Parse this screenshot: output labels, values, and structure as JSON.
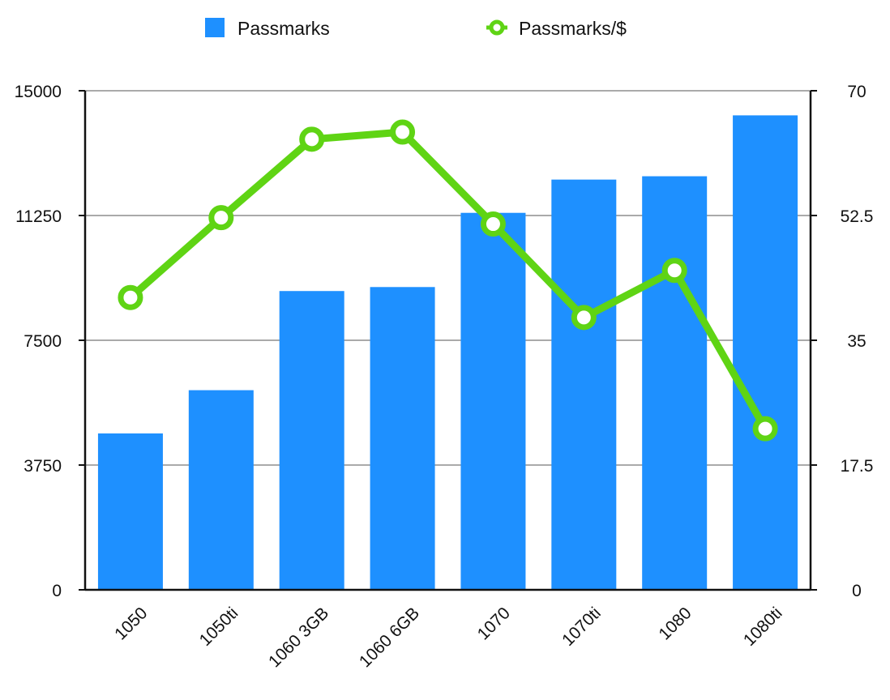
{
  "chart_data": {
    "type": "bar",
    "categories": [
      "1050",
      "1050ti",
      "1060 3GB",
      "1060 6GB",
      "1070",
      "1070ti",
      "1080",
      "1080ti"
    ],
    "series": [
      {
        "name": "Passmarks",
        "type": "bar",
        "axis": "left",
        "color": "#1e90ff",
        "values": [
          4700,
          6000,
          8980,
          9100,
          11330,
          12330,
          12430,
          14260
        ]
      },
      {
        "name": "Passmarks/$",
        "type": "line",
        "axis": "right",
        "color": "#5fd414",
        "values": [
          41.0,
          52.2,
          63.2,
          64.2,
          51.3,
          38.2,
          44.8,
          22.6
        ]
      }
    ],
    "y_left": {
      "ylim": [
        0,
        15000
      ],
      "ticks": [
        "0",
        "3750",
        "7500",
        "11250",
        "15000"
      ]
    },
    "y_right": {
      "ylim": [
        0,
        70
      ],
      "ticks": [
        "0",
        "17.5",
        "35",
        "52.5",
        "70"
      ]
    },
    "grid": true,
    "legend": "top"
  }
}
